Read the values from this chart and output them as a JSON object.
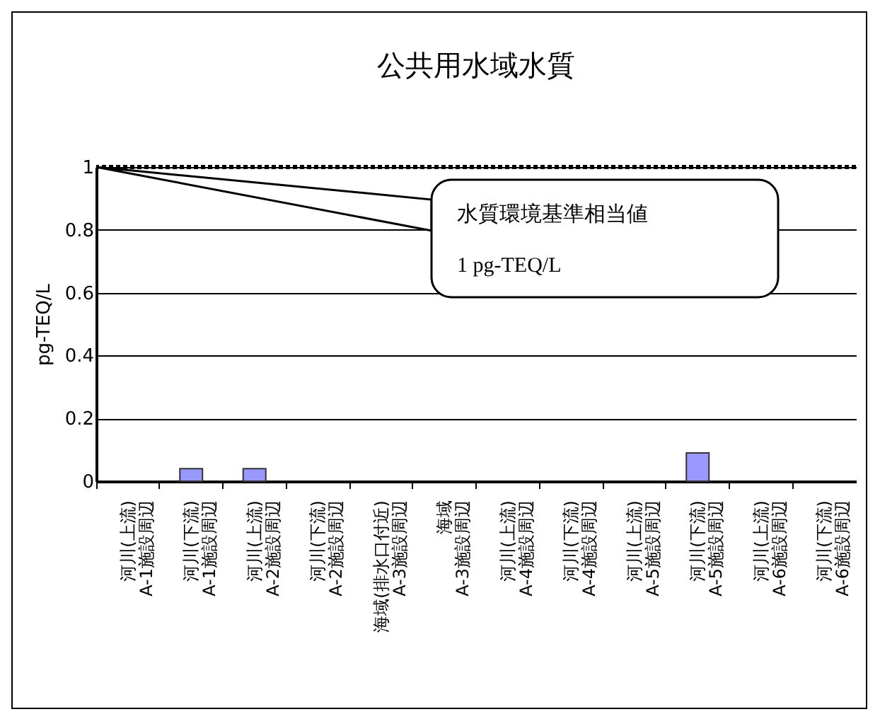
{
  "chart_data": {
    "type": "bar",
    "title": "公共用水域水質",
    "ylabel": "pg-TEQ/L",
    "categories": [
      "河川(上流)\nA-1施設周辺",
      "河川(下流)\nA-1施設周辺",
      "河川(上流)\nA-2施設周辺",
      "河川(下流)\nA-2施設周辺",
      "海域(排水口付近)\nA-3施設周辺",
      "海域\nA-3施設周辺",
      "河川(上流)\nA-4施設周辺",
      "河川(下流)\nA-4施設周辺",
      "河川(上流)\nA-5施設周辺",
      "河川(下流)\nA-5施設周辺",
      "河川(上流)\nA-6施設周辺",
      "河川(下流)\nA-6施設周辺"
    ],
    "series": [
      {
        "color": "#9999ff",
        "values": [
          0,
          0.04,
          0.04,
          0,
          0,
          0,
          0,
          0,
          0,
          0.09,
          0,
          0
        ]
      }
    ],
    "ylim": [
      0,
      1
    ],
    "yticks": [
      0,
      0.2,
      0.4,
      0.6,
      0.8,
      1
    ],
    "grid": "y",
    "ref_lines": [
      {
        "axis": "y",
        "value": 1,
        "label": "水質環境基準相当値\n1 pg-TEQ/L",
        "line_style": "dotted",
        "color": "#000000"
      }
    ]
  }
}
